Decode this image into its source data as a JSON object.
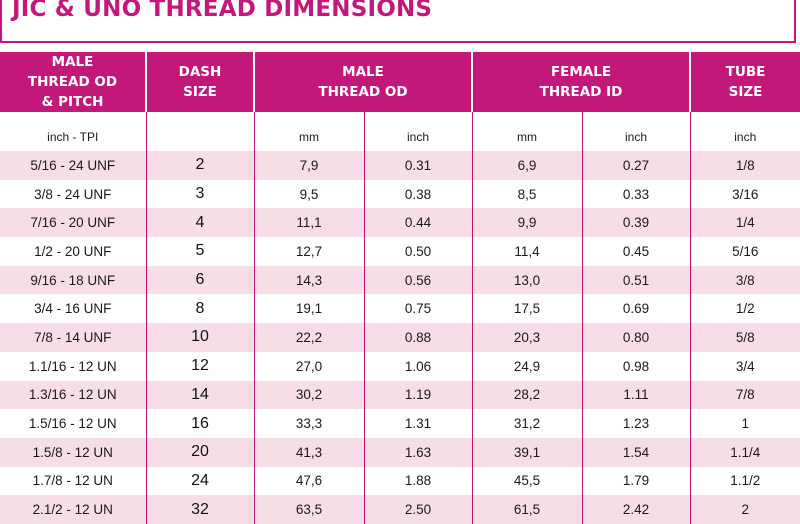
{
  "title": "JIC & UNO THREAD DIMENSIONS",
  "headers": {
    "male_od_pitch": "MALE THREAD OD & PITCH",
    "dash_size": "DASH SIZE",
    "male_thread_od": "MALE THREAD OD",
    "female_thread_id": "FEMALE THREAD ID",
    "tube_size": "TUBE SIZE"
  },
  "units": [
    "inch - TPI",
    "",
    "mm",
    "inch",
    "mm",
    "inch",
    "inch"
  ],
  "rows": [
    [
      "5/16 - 24 UNF",
      "2",
      "7,9",
      "0.31",
      "6,9",
      "0.27",
      "1/8"
    ],
    [
      "3/8 - 24 UNF",
      "3",
      "9,5",
      "0.38",
      "8,5",
      "0.33",
      "3/16"
    ],
    [
      "7/16 - 20 UNF",
      "4",
      "11,1",
      "0.44",
      "9,9",
      "0.39",
      "1/4"
    ],
    [
      "1/2 - 20 UNF",
      "5",
      "12,7",
      "0.50",
      "11,4",
      "0.45",
      "5/16"
    ],
    [
      "9/16 - 18 UNF",
      "6",
      "14,3",
      "0.56",
      "13,0",
      "0.51",
      "3/8"
    ],
    [
      "3/4 - 16 UNF",
      "8",
      "19,1",
      "0.75",
      "17,5",
      "0.69",
      "1/2"
    ],
    [
      "7/8 - 14 UNF",
      "10",
      "22,2",
      "0.88",
      "20,3",
      "0.80",
      "5/8"
    ],
    [
      "1.1/16 - 12 UN",
      "12",
      "27,0",
      "1.06",
      "24,9",
      "0.98",
      "3/4"
    ],
    [
      "1.3/16 - 12 UN",
      "14",
      "30,2",
      "1.19",
      "28,2",
      "1.11",
      "7/8"
    ],
    [
      "1.5/16 - 12 UN",
      "16",
      "33,3",
      "1.31",
      "31,2",
      "1.23",
      "1"
    ],
    [
      "1.5/8 - 12 UN",
      "20",
      "41,3",
      "1.63",
      "39,1",
      "1.54",
      "1.1/4"
    ],
    [
      "1.7/8 - 12 UN",
      "24",
      "47,6",
      "1.88",
      "45,5",
      "1.79",
      "1.1/2"
    ],
    [
      "2.1/2 - 12 UN",
      "32",
      "63,5",
      "2.50",
      "61,5",
      "2.42",
      "2"
    ]
  ],
  "colors": {
    "accent": "#c2187a",
    "row_tint": "#f7dde8"
  }
}
